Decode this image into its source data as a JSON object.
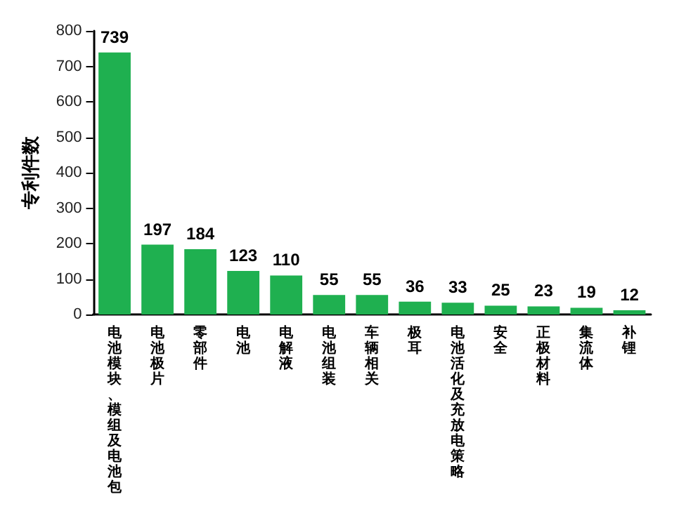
{
  "chart_data": {
    "type": "bar",
    "ylabel": "专利件数",
    "categories": [
      "电池模块、模组及电池包",
      "电池极片",
      "零部件",
      "电池",
      "电解液",
      "电池组装",
      "车辆相关",
      "极耳",
      "电池活化及充放电策略",
      "安全",
      "正极材料",
      "集流体",
      "补锂"
    ],
    "values": [
      739,
      197,
      184,
      123,
      110,
      55,
      55,
      36,
      33,
      25,
      23,
      19,
      12
    ],
    "color": "#1fb050",
    "ylim": [
      0,
      800
    ],
    "yticks": [
      0,
      100,
      200,
      300,
      400,
      500,
      600,
      700,
      800
    ],
    "grid": false,
    "data_labels": true
  }
}
